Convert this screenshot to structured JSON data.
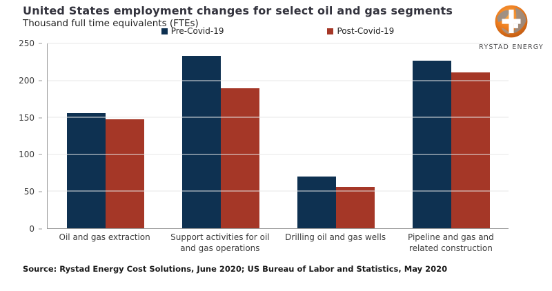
{
  "header": {
    "title": "United States employment changes for select oil and gas segments",
    "subtitle": "Thousand full time equivalents (FTEs)"
  },
  "logo": {
    "brand": "RYSTAD ENERGY"
  },
  "source": "Source: Rystad Energy Cost Solutions, June 2020; US Bureau of Labor and Statistics, May 2020",
  "colors": {
    "pre_covid": "#0E3151",
    "post_covid": "#A53727",
    "gridline": "#e7e7e7",
    "axis": "#999999",
    "title_text": "#33333d",
    "logo_orange": "#EE7D1E"
  },
  "chart_data": {
    "type": "bar",
    "title": "United States employment changes for select oil and gas segments",
    "subtitle": "Thousand full time equivalents (FTEs)",
    "ylabel": "Thousand full time equivalents (FTEs)",
    "xlabel": "",
    "categories": [
      "Oil and gas extraction",
      "Support activities for oil and gas operations",
      "Drilling oil and gas wells",
      "Pipeline and gas and related construction"
    ],
    "series": [
      {
        "name": "Pre-Covid-19",
        "color": "#0E3151",
        "values": [
          156,
          233,
          70,
          227
        ]
      },
      {
        "name": "Post-Covid-19",
        "color": "#A53727",
        "values": [
          147,
          189,
          56,
          211
        ]
      }
    ],
    "ylim": [
      0,
      250
    ],
    "yticks": [
      0,
      50,
      100,
      150,
      200,
      250
    ],
    "grid": true,
    "legend_position": "top-center"
  }
}
